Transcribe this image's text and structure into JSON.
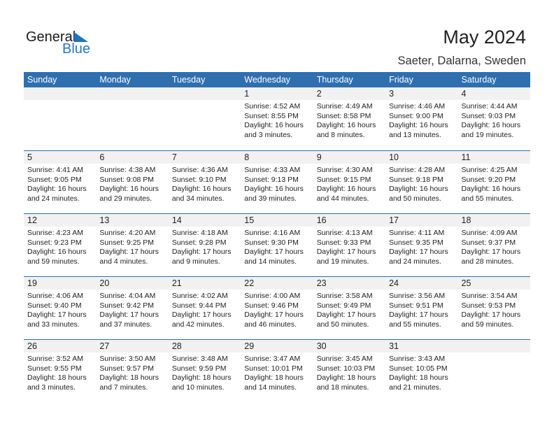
{
  "logo": {
    "general": "General",
    "blue": "Blue"
  },
  "title": "May 2024",
  "location": "Saeter, Dalarna, Sweden",
  "colors": {
    "header": "#2f6fb0",
    "accent": "#1f73bf"
  },
  "weekdays": [
    "Sunday",
    "Monday",
    "Tuesday",
    "Wednesday",
    "Thursday",
    "Friday",
    "Saturday"
  ],
  "weeks": [
    [
      null,
      null,
      null,
      {
        "day": "1",
        "sunrise": "Sunrise: 4:52 AM",
        "sunset": "Sunset: 8:55 PM",
        "daylight": "Daylight: 16 hours",
        "minutes": "and 3 minutes."
      },
      {
        "day": "2",
        "sunrise": "Sunrise: 4:49 AM",
        "sunset": "Sunset: 8:58 PM",
        "daylight": "Daylight: 16 hours",
        "minutes": "and 8 minutes."
      },
      {
        "day": "3",
        "sunrise": "Sunrise: 4:46 AM",
        "sunset": "Sunset: 9:00 PM",
        "daylight": "Daylight: 16 hours",
        "minutes": "and 13 minutes."
      },
      {
        "day": "4",
        "sunrise": "Sunrise: 4:44 AM",
        "sunset": "Sunset: 9:03 PM",
        "daylight": "Daylight: 16 hours",
        "minutes": "and 19 minutes."
      }
    ],
    [
      {
        "day": "5",
        "sunrise": "Sunrise: 4:41 AM",
        "sunset": "Sunset: 9:05 PM",
        "daylight": "Daylight: 16 hours",
        "minutes": "and 24 minutes."
      },
      {
        "day": "6",
        "sunrise": "Sunrise: 4:38 AM",
        "sunset": "Sunset: 9:08 PM",
        "daylight": "Daylight: 16 hours",
        "minutes": "and 29 minutes."
      },
      {
        "day": "7",
        "sunrise": "Sunrise: 4:36 AM",
        "sunset": "Sunset: 9:10 PM",
        "daylight": "Daylight: 16 hours",
        "minutes": "and 34 minutes."
      },
      {
        "day": "8",
        "sunrise": "Sunrise: 4:33 AM",
        "sunset": "Sunset: 9:13 PM",
        "daylight": "Daylight: 16 hours",
        "minutes": "and 39 minutes."
      },
      {
        "day": "9",
        "sunrise": "Sunrise: 4:30 AM",
        "sunset": "Sunset: 9:15 PM",
        "daylight": "Daylight: 16 hours",
        "minutes": "and 44 minutes."
      },
      {
        "day": "10",
        "sunrise": "Sunrise: 4:28 AM",
        "sunset": "Sunset: 9:18 PM",
        "daylight": "Daylight: 16 hours",
        "minutes": "and 50 minutes."
      },
      {
        "day": "11",
        "sunrise": "Sunrise: 4:25 AM",
        "sunset": "Sunset: 9:20 PM",
        "daylight": "Daylight: 16 hours",
        "minutes": "and 55 minutes."
      }
    ],
    [
      {
        "day": "12",
        "sunrise": "Sunrise: 4:23 AM",
        "sunset": "Sunset: 9:23 PM",
        "daylight": "Daylight: 16 hours",
        "minutes": "and 59 minutes."
      },
      {
        "day": "13",
        "sunrise": "Sunrise: 4:20 AM",
        "sunset": "Sunset: 9:25 PM",
        "daylight": "Daylight: 17 hours",
        "minutes": "and 4 minutes."
      },
      {
        "day": "14",
        "sunrise": "Sunrise: 4:18 AM",
        "sunset": "Sunset: 9:28 PM",
        "daylight": "Daylight: 17 hours",
        "minutes": "and 9 minutes."
      },
      {
        "day": "15",
        "sunrise": "Sunrise: 4:16 AM",
        "sunset": "Sunset: 9:30 PM",
        "daylight": "Daylight: 17 hours",
        "minutes": "and 14 minutes."
      },
      {
        "day": "16",
        "sunrise": "Sunrise: 4:13 AM",
        "sunset": "Sunset: 9:33 PM",
        "daylight": "Daylight: 17 hours",
        "minutes": "and 19 minutes."
      },
      {
        "day": "17",
        "sunrise": "Sunrise: 4:11 AM",
        "sunset": "Sunset: 9:35 PM",
        "daylight": "Daylight: 17 hours",
        "minutes": "and 24 minutes."
      },
      {
        "day": "18",
        "sunrise": "Sunrise: 4:09 AM",
        "sunset": "Sunset: 9:37 PM",
        "daylight": "Daylight: 17 hours",
        "minutes": "and 28 minutes."
      }
    ],
    [
      {
        "day": "19",
        "sunrise": "Sunrise: 4:06 AM",
        "sunset": "Sunset: 9:40 PM",
        "daylight": "Daylight: 17 hours",
        "minutes": "and 33 minutes."
      },
      {
        "day": "20",
        "sunrise": "Sunrise: 4:04 AM",
        "sunset": "Sunset: 9:42 PM",
        "daylight": "Daylight: 17 hours",
        "minutes": "and 37 minutes."
      },
      {
        "day": "21",
        "sunrise": "Sunrise: 4:02 AM",
        "sunset": "Sunset: 9:44 PM",
        "daylight": "Daylight: 17 hours",
        "minutes": "and 42 minutes."
      },
      {
        "day": "22",
        "sunrise": "Sunrise: 4:00 AM",
        "sunset": "Sunset: 9:46 PM",
        "daylight": "Daylight: 17 hours",
        "minutes": "and 46 minutes."
      },
      {
        "day": "23",
        "sunrise": "Sunrise: 3:58 AM",
        "sunset": "Sunset: 9:49 PM",
        "daylight": "Daylight: 17 hours",
        "minutes": "and 50 minutes."
      },
      {
        "day": "24",
        "sunrise": "Sunrise: 3:56 AM",
        "sunset": "Sunset: 9:51 PM",
        "daylight": "Daylight: 17 hours",
        "minutes": "and 55 minutes."
      },
      {
        "day": "25",
        "sunrise": "Sunrise: 3:54 AM",
        "sunset": "Sunset: 9:53 PM",
        "daylight": "Daylight: 17 hours",
        "minutes": "and 59 minutes."
      }
    ],
    [
      {
        "day": "26",
        "sunrise": "Sunrise: 3:52 AM",
        "sunset": "Sunset: 9:55 PM",
        "daylight": "Daylight: 18 hours",
        "minutes": "and 3 minutes."
      },
      {
        "day": "27",
        "sunrise": "Sunrise: 3:50 AM",
        "sunset": "Sunset: 9:57 PM",
        "daylight": "Daylight: 18 hours",
        "minutes": "and 7 minutes."
      },
      {
        "day": "28",
        "sunrise": "Sunrise: 3:48 AM",
        "sunset": "Sunset: 9:59 PM",
        "daylight": "Daylight: 18 hours",
        "minutes": "and 10 minutes."
      },
      {
        "day": "29",
        "sunrise": "Sunrise: 3:47 AM",
        "sunset": "Sunset: 10:01 PM",
        "daylight": "Daylight: 18 hours",
        "minutes": "and 14 minutes."
      },
      {
        "day": "30",
        "sunrise": "Sunrise: 3:45 AM",
        "sunset": "Sunset: 10:03 PM",
        "daylight": "Daylight: 18 hours",
        "minutes": "and 18 minutes."
      },
      {
        "day": "31",
        "sunrise": "Sunrise: 3:43 AM",
        "sunset": "Sunset: 10:05 PM",
        "daylight": "Daylight: 18 hours",
        "minutes": "and 21 minutes."
      },
      null
    ]
  ]
}
